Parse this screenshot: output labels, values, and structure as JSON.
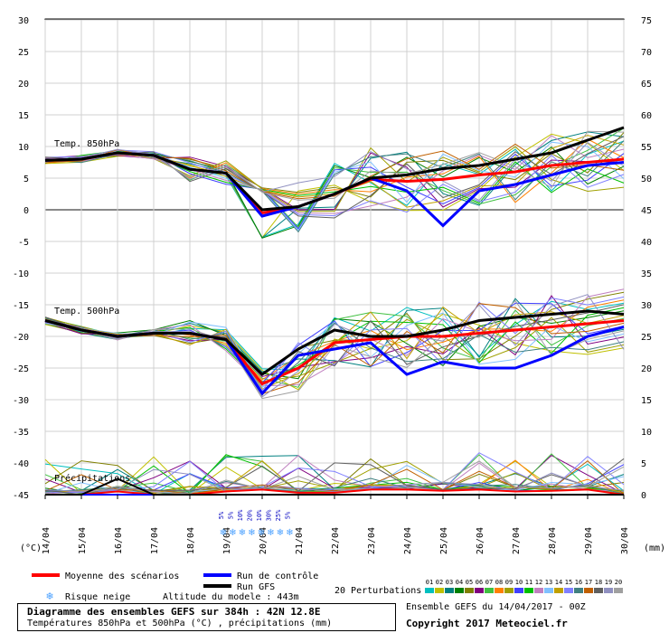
{
  "chart_data": {
    "type": "line",
    "title": "Diagramme des ensembles GEFS sur 384h : 42N 12.8E",
    "subtitle": "Températures 850hPa et 500hPa (°C) , précipitations (mm)",
    "x_dates": [
      "14/04",
      "15/04",
      "16/04",
      "17/04",
      "18/04",
      "19/04",
      "20/04",
      "21/04",
      "22/04",
      "23/04",
      "24/04",
      "25/04",
      "26/04",
      "27/04",
      "28/04",
      "29/04",
      "30/04"
    ],
    "left_axis_unit": "(°C)",
    "right_axis_unit": "(mm)",
    "left_ticks": [
      30,
      25,
      20,
      15,
      10,
      5,
      0,
      -5,
      -10,
      -15,
      -20,
      -25,
      -30,
      -35,
      -40,
      -45
    ],
    "right_ticks": [
      75,
      70,
      65,
      60,
      55,
      50,
      45,
      40,
      35,
      30,
      25,
      20,
      15,
      10,
      5,
      0
    ],
    "ylim": [
      -45,
      30
    ],
    "panel_labels": {
      "t850": "Temp. 850hPa",
      "t500": "Temp. 500hPa",
      "precip": "Précipitations"
    },
    "series": [
      {
        "name": "Moyenne des scénarios",
        "color": "#ff0000",
        "t850": [
          7.8,
          8,
          9,
          8.6,
          6.4,
          5.8,
          -0.5,
          0.5,
          2.5,
          4.8,
          4.5,
          4.8,
          5.5,
          6,
          7,
          7.5,
          8
        ],
        "t500": [
          -17.5,
          -19,
          -20,
          -19.5,
          -19.5,
          -20.5,
          -27.5,
          -25,
          -21,
          -20.5,
          -20,
          -20,
          -19.5,
          -19,
          -18.5,
          -18,
          -17.5
        ],
        "precip": [
          0,
          0,
          0.5,
          0,
          0,
          0.5,
          0.8,
          0.3,
          0.3,
          0.8,
          0.8,
          0.6,
          0.8,
          0.5,
          0.6,
          0.8,
          0
        ]
      },
      {
        "name": "Run de contrôle",
        "color": "#0000ff",
        "t850": [
          7.8,
          8,
          9,
          8.6,
          6.4,
          5.8,
          -1,
          0.5,
          2.5,
          5,
          3,
          -2.5,
          3,
          4,
          5.5,
          7,
          7.5
        ],
        "t500": [
          -17.5,
          -19,
          -20,
          -19.5,
          -19.5,
          -20.5,
          -29,
          -23,
          -22,
          -21,
          -26,
          -24,
          -25,
          -25,
          -23,
          -20,
          -18.5
        ],
        "precip": [
          0,
          0,
          0,
          0,
          0,
          0,
          0,
          0,
          0,
          0,
          0,
          0,
          0,
          0,
          0,
          0,
          0
        ]
      },
      {
        "name": "Run GFS",
        "color": "#000000",
        "t850": [
          7.8,
          8,
          9,
          8.6,
          6.4,
          5.8,
          0,
          0.5,
          2.5,
          5,
          5.5,
          6.5,
          7,
          8,
          9,
          11,
          13
        ],
        "t500": [
          -17.5,
          -19,
          -20,
          -19.5,
          -19.5,
          -20.5,
          -26,
          -22,
          -19,
          -20,
          -20,
          -19,
          -17.5,
          -17,
          -16.5,
          -16,
          -16.5
        ],
        "precip": [
          0,
          0,
          2.5,
          0,
          0,
          0,
          0,
          0,
          0,
          0,
          0,
          0,
          0,
          0,
          0,
          0,
          0
        ]
      }
    ],
    "legend": {
      "mean": "Moyenne des scénarios",
      "control": "Run de contrôle",
      "gfs": "Run GFS",
      "perturbations": "20 Perturbations",
      "snow_risk": "Risque neige",
      "altitude": "Altitude du modele : 443m"
    },
    "perturbation_labels": [
      "01",
      "02",
      "03",
      "04",
      "05",
      "06",
      "07",
      "08",
      "09",
      "10",
      "11",
      "12",
      "13",
      "14",
      "15",
      "16",
      "17",
      "18",
      "19",
      "20"
    ],
    "perturbation_colors": [
      "#00bfbf",
      "#c0c000",
      "#008080",
      "#008000",
      "#808000",
      "#800080",
      "#40c040",
      "#ff8000",
      "#a0a000",
      "#4040ff",
      "#00c000",
      "#c080c0",
      "#80c0ff",
      "#c0a000",
      "#8080ff",
      "#408080",
      "#c06000",
      "#606060",
      "#9090c0",
      "#a0a0a0"
    ],
    "snow_risk_percent": [
      "5%",
      "5%",
      "10%",
      "20%",
      "10%",
      "30%",
      "25%",
      "5%"
    ],
    "run_info": "Ensemble GEFS du 14/04/2017 - 00Z",
    "copyright": "Copyright 2017 Meteociel.fr"
  }
}
